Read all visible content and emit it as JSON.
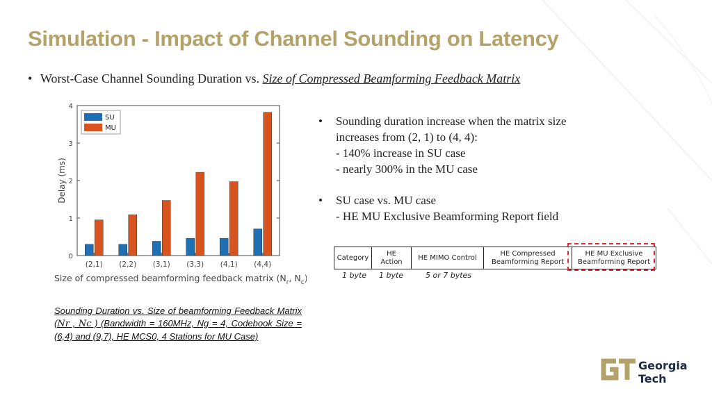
{
  "slide": {
    "title": "Simulation - Impact of Channel Sounding on Latency",
    "main_bullet": {
      "marker": "•",
      "prefix": "Worst-Case Channel Sounding Duration vs. ",
      "emphasis": "Size of Compressed Beamforming Feedback Matrix"
    },
    "right_bullets": [
      {
        "marker": "•",
        "lines": [
          "Sounding duration increase when the matrix size",
          "increases from (2, 1) to (4, 4):",
          "- 140% increase in SU case",
          "- nearly 300% in the MU case"
        ]
      },
      {
        "marker": "•",
        "lines": [
          "SU case  vs. MU case",
          "- HE MU Exclusive Beamforming Report field"
        ]
      }
    ],
    "caption": {
      "part1": "Sounding Duration vs. Size of beamforming Feedback Matrix (",
      "nr": "Nr",
      "sep": " , ",
      "nc": "Nc",
      "part2": " ) (Bandwidth = 160MHz, Ng = 4, Codebook Size = (6,4) and (9,7), HE MCS0, 4 Stations for MU Case)"
    },
    "frame": {
      "fields": [
        {
          "label": "Category",
          "size": "1 byte"
        },
        {
          "label": "HE Action",
          "size": "1 byte"
        },
        {
          "label": "HE MIMO Control",
          "size": "5 or 7 bytes"
        },
        {
          "label": "HE Compressed Beamforming Report",
          "size": ""
        },
        {
          "label": "HE MU Exclusive Beamforming Report",
          "size": ""
        }
      ],
      "highlight_color": "#e0262e"
    },
    "logo": {
      "line1": "Georgia",
      "line2": "Tech",
      "mark": "GT"
    },
    "colors": {
      "title": "#b3a36a",
      "su": "#1f6fb5",
      "mu": "#d9531e"
    }
  },
  "chart_data": {
    "type": "bar",
    "categories": [
      "(2,1)",
      "(2,2)",
      "(3,1)",
      "(3,3)",
      "(4,1)",
      "(4,4)"
    ],
    "series": [
      {
        "name": "SU",
        "values": [
          0.3,
          0.3,
          0.38,
          0.46,
          0.46,
          0.71
        ]
      },
      {
        "name": "MU",
        "values": [
          0.95,
          1.09,
          1.47,
          2.22,
          1.97,
          3.82
        ]
      }
    ],
    "ylabel": "Delay (ms)",
    "xlabel_parts": {
      "main": "Size of compressed beamforming feedback matrix (N",
      "sub1": "r",
      "mid": ", N",
      "sub2": "c",
      "end": ")"
    },
    "yticks": [
      0,
      1,
      2,
      3,
      4
    ],
    "ylim": [
      0,
      4
    ],
    "grid": false,
    "legend": "top-left"
  }
}
